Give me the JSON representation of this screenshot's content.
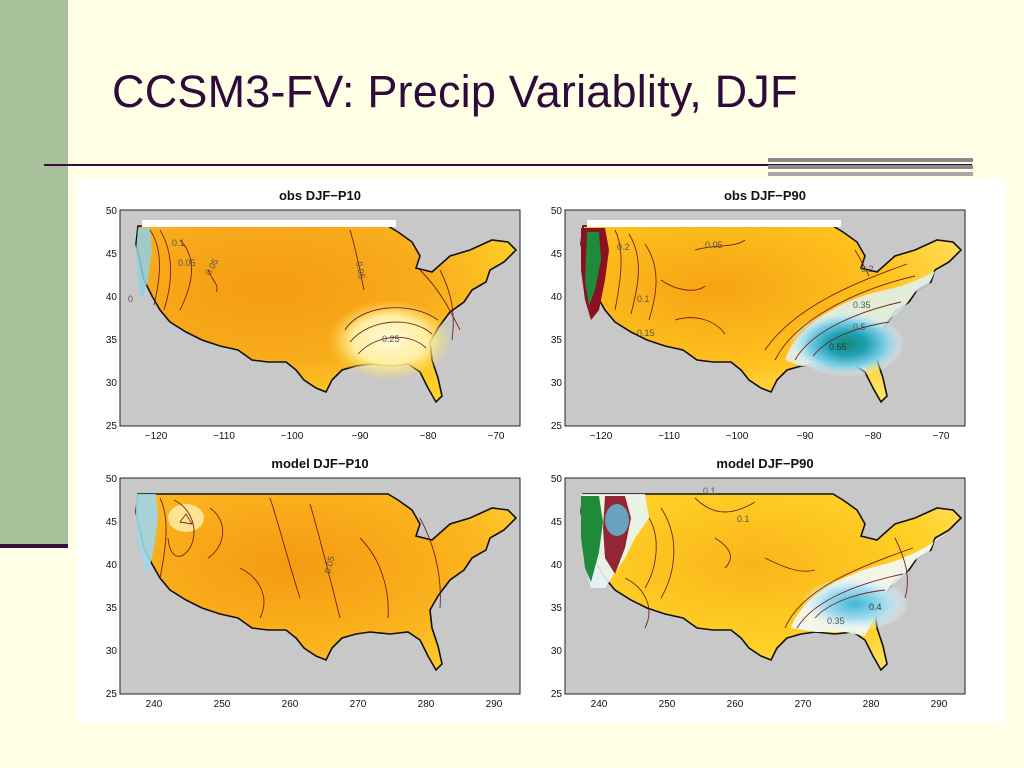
{
  "slide": {
    "title": "CCSM3-FV: Precip Variablity, DJF"
  },
  "colors": {
    "background": "#FFFFE5",
    "side_bar": "#A7C29A",
    "title_text": "#2F0A3A",
    "ocean": "#C8C8C8",
    "land_low": "#F7A316",
    "land_mid": "#FFD21C",
    "land_high": "#FFF4A0",
    "wet_light": "#BFE6F2",
    "wet_mid": "#39B4CC",
    "wet_high": "#1E8F8F",
    "wet_max": "#0F7A2E",
    "wet_extreme": "#8B1020"
  },
  "panels": [
    {
      "id": "obs-p10",
      "title": "obs DJF−P10",
      "lat_ticks": [
        "50",
        "45",
        "40",
        "35",
        "30",
        "25"
      ],
      "lon_ticks": [
        "−120",
        "−110",
        "−100",
        "−90",
        "−80",
        "−70"
      ],
      "contour_labels": [
        "0.1",
        "0.05",
        "0.05",
        "0.05",
        "0.25",
        "0"
      ]
    },
    {
      "id": "obs-p90",
      "title": "obs DJF−P90",
      "lat_ticks": [
        "50",
        "45",
        "40",
        "35",
        "30",
        "25"
      ],
      "lon_ticks": [
        "−120",
        "−110",
        "−100",
        "−90",
        "−80",
        "−70"
      ],
      "contour_labels": [
        "0.2",
        "0.05",
        "0.1",
        "0.15",
        "0.35",
        "0.5",
        "0.55",
        "0.2"
      ]
    },
    {
      "id": "model-p10",
      "title": "model DJF−P10",
      "lat_ticks": [
        "50",
        "45",
        "40",
        "35",
        "30",
        "25"
      ],
      "lon_ticks": [
        "240",
        "250",
        "260",
        "270",
        "280",
        "290"
      ],
      "contour_labels": [
        "0.05"
      ]
    },
    {
      "id": "model-p90",
      "title": "model DJF−P90",
      "lat_ticks": [
        "50",
        "45",
        "40",
        "35",
        "30",
        "25"
      ],
      "lon_ticks": [
        "240",
        "250",
        "260",
        "270",
        "280",
        "290"
      ],
      "contour_labels": [
        "0.1",
        "0.1",
        "0.4",
        "0.35"
      ]
    }
  ]
}
